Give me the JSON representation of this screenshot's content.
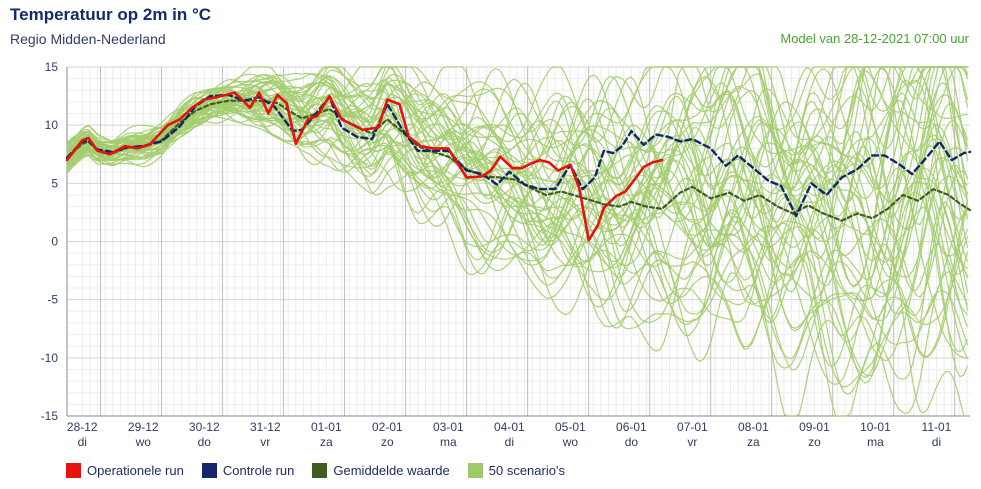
{
  "header": {
    "title": "Temperatuur op 2m in °C",
    "subtitle": "Regio Midden-Nederland",
    "model": "Model van 28-12-2021 07:00 uur"
  },
  "legend": [
    {
      "label": "Operationele run",
      "color": "#e8120c"
    },
    {
      "label": "Controle run",
      "color": "#13266a"
    },
    {
      "label": "Gemiddelde waarde",
      "color": "#3f5d1f"
    },
    {
      "label": "50 scenario's",
      "color": "#9fca6a"
    }
  ],
  "chart_data": {
    "type": "line",
    "ylim": [
      -15,
      15
    ],
    "yticks": [
      15,
      10,
      5,
      0,
      -5,
      -10,
      -15
    ],
    "xlim": [
      -0.25,
      14.55
    ],
    "days": [
      {
        "date": "28-12",
        "day": "di"
      },
      {
        "date": "29-12",
        "day": "wo"
      },
      {
        "date": "30-12",
        "day": "do"
      },
      {
        "date": "31-12",
        "day": "vr"
      },
      {
        "date": "01-01",
        "day": "za"
      },
      {
        "date": "02-01",
        "day": "zo"
      },
      {
        "date": "03-01",
        "day": "ma"
      },
      {
        "date": "04-01",
        "day": "di"
      },
      {
        "date": "05-01",
        "day": "wo"
      },
      {
        "date": "06-01",
        "day": "do"
      },
      {
        "date": "07-01",
        "day": "vr"
      },
      {
        "date": "08-01",
        "day": "za"
      },
      {
        "date": "09-01",
        "day": "zo"
      },
      {
        "date": "10-01",
        "day": "ma"
      },
      {
        "date": "11-01",
        "day": "di"
      }
    ],
    "series": [
      {
        "name": "Operationele run",
        "color": "#e8120c",
        "x": [
          -0.25,
          0,
          0.1,
          0.25,
          0.45,
          0.7,
          0.9,
          1.1,
          1.4,
          1.6,
          1.8,
          2.0,
          2.2,
          2.5,
          2.75,
          2.9,
          3.05,
          3.2,
          3.35,
          3.5,
          3.7,
          3.85,
          4.05,
          4.25,
          4.45,
          4.6,
          4.85,
          5.0,
          5.2,
          5.35,
          5.55,
          5.75,
          6.0,
          6.3,
          6.55,
          6.7,
          6.85,
          7.05,
          7.2,
          7.35,
          7.5,
          7.65,
          7.8,
          8.0,
          8.15,
          8.3,
          8.45,
          8.55,
          8.65,
          8.75,
          8.9,
          9.05,
          9.2,
          9.35,
          9.5
        ],
        "y": [
          7,
          8.7,
          8.9,
          7.8,
          7.5,
          8.2,
          8.0,
          8.3,
          10.0,
          10.5,
          11.5,
          12.2,
          12.4,
          12.8,
          11.5,
          12.8,
          11.0,
          12.6,
          11.9,
          8.4,
          10.5,
          10.8,
          12.5,
          10.5,
          10.0,
          9.6,
          9.8,
          12.2,
          11.8,
          9.0,
          8.2,
          8.0,
          8.0,
          5.5,
          5.6,
          6.1,
          7.3,
          6.3,
          6.3,
          6.7,
          7.0,
          6.8,
          6.1,
          6.6,
          4.5,
          0.1,
          1.4,
          2.9,
          3.4,
          3.9,
          4.3,
          5.3,
          6.4,
          6.8,
          7.0
        ]
      },
      {
        "name": "Controle run",
        "color": "#13266a",
        "x": [
          -0.25,
          0,
          0.1,
          0.25,
          0.5,
          0.75,
          1.0,
          1.3,
          1.6,
          1.85,
          2.1,
          2.4,
          2.65,
          2.9,
          3.15,
          3.45,
          3.6,
          3.8,
          4.05,
          4.25,
          4.5,
          4.75,
          5.0,
          5.25,
          5.5,
          6.0,
          6.3,
          6.55,
          6.8,
          7.0,
          7.25,
          7.5,
          7.75,
          8.0,
          8.2,
          8.4,
          8.55,
          8.7,
          8.85,
          9.0,
          9.2,
          9.4,
          9.6,
          9.8,
          10.0,
          10.3,
          10.55,
          10.75,
          11.0,
          11.25,
          11.45,
          11.7,
          11.95,
          12.2,
          12.45,
          12.7,
          12.95,
          13.15,
          13.4,
          13.6,
          13.85,
          14.05,
          14.25,
          14.45,
          14.55
        ],
        "y": [
          7.2,
          8.6,
          8.7,
          7.9,
          7.7,
          8.1,
          8.2,
          8.6,
          9.9,
          11.6,
          12.5,
          12.6,
          12.1,
          12.4,
          11.6,
          9.5,
          9.6,
          10.8,
          12.4,
          9.8,
          9.0,
          8.8,
          11.8,
          9.6,
          7.8,
          7.8,
          6.1,
          5.8,
          4.9,
          6.0,
          4.9,
          4.5,
          4.5,
          6.6,
          4.5,
          5.5,
          7.8,
          7.6,
          8.2,
          9.5,
          8.3,
          9.2,
          9.0,
          8.6,
          8.8,
          8.0,
          6.5,
          7.4,
          6.3,
          5.2,
          4.8,
          2.2,
          5.0,
          4.0,
          5.5,
          6.2,
          7.4,
          7.4,
          6.6,
          5.8,
          7.3,
          8.6,
          7.0,
          7.6,
          7.7
        ]
      },
      {
        "name": "Gemiddelde waarde",
        "color": "#3f5d1f",
        "x": [
          -0.25,
          0,
          0.1,
          0.25,
          0.5,
          0.75,
          1.0,
          1.3,
          1.6,
          1.85,
          2.1,
          2.4,
          2.7,
          2.9,
          3.2,
          3.4,
          3.6,
          3.8,
          4.05,
          4.3,
          4.5,
          4.75,
          5.0,
          5.25,
          5.5,
          5.75,
          6.0,
          6.3,
          6.6,
          6.85,
          7.1,
          7.35,
          7.6,
          7.85,
          8.05,
          8.3,
          8.55,
          8.8,
          9.0,
          9.25,
          9.5,
          9.8,
          10.0,
          10.3,
          10.6,
          10.85,
          11.1,
          11.4,
          11.65,
          11.9,
          12.15,
          12.45,
          12.7,
          12.95,
          13.2,
          13.45,
          13.7,
          13.95,
          14.2,
          14.4,
          14.55
        ],
        "y": [
          7.2,
          8.4,
          8.6,
          7.8,
          7.6,
          8.1,
          8.2,
          8.7,
          10.2,
          11.2,
          11.8,
          12.1,
          12.1,
          12.1,
          11.9,
          11.2,
          10.6,
          10.9,
          11.4,
          10.4,
          9.8,
          9.3,
          10.5,
          9.4,
          8.2,
          7.7,
          7.3,
          6.2,
          5.6,
          5.5,
          5.3,
          4.6,
          4.0,
          4.3,
          4.0,
          3.6,
          3.2,
          3.0,
          3.4,
          3.0,
          2.8,
          4.2,
          4.7,
          3.7,
          4.2,
          3.5,
          4.0,
          3.0,
          2.4,
          3.1,
          2.4,
          1.8,
          2.4,
          2.0,
          2.8,
          4.0,
          3.5,
          4.5,
          4.0,
          3.2,
          2.7
        ]
      }
    ]
  }
}
